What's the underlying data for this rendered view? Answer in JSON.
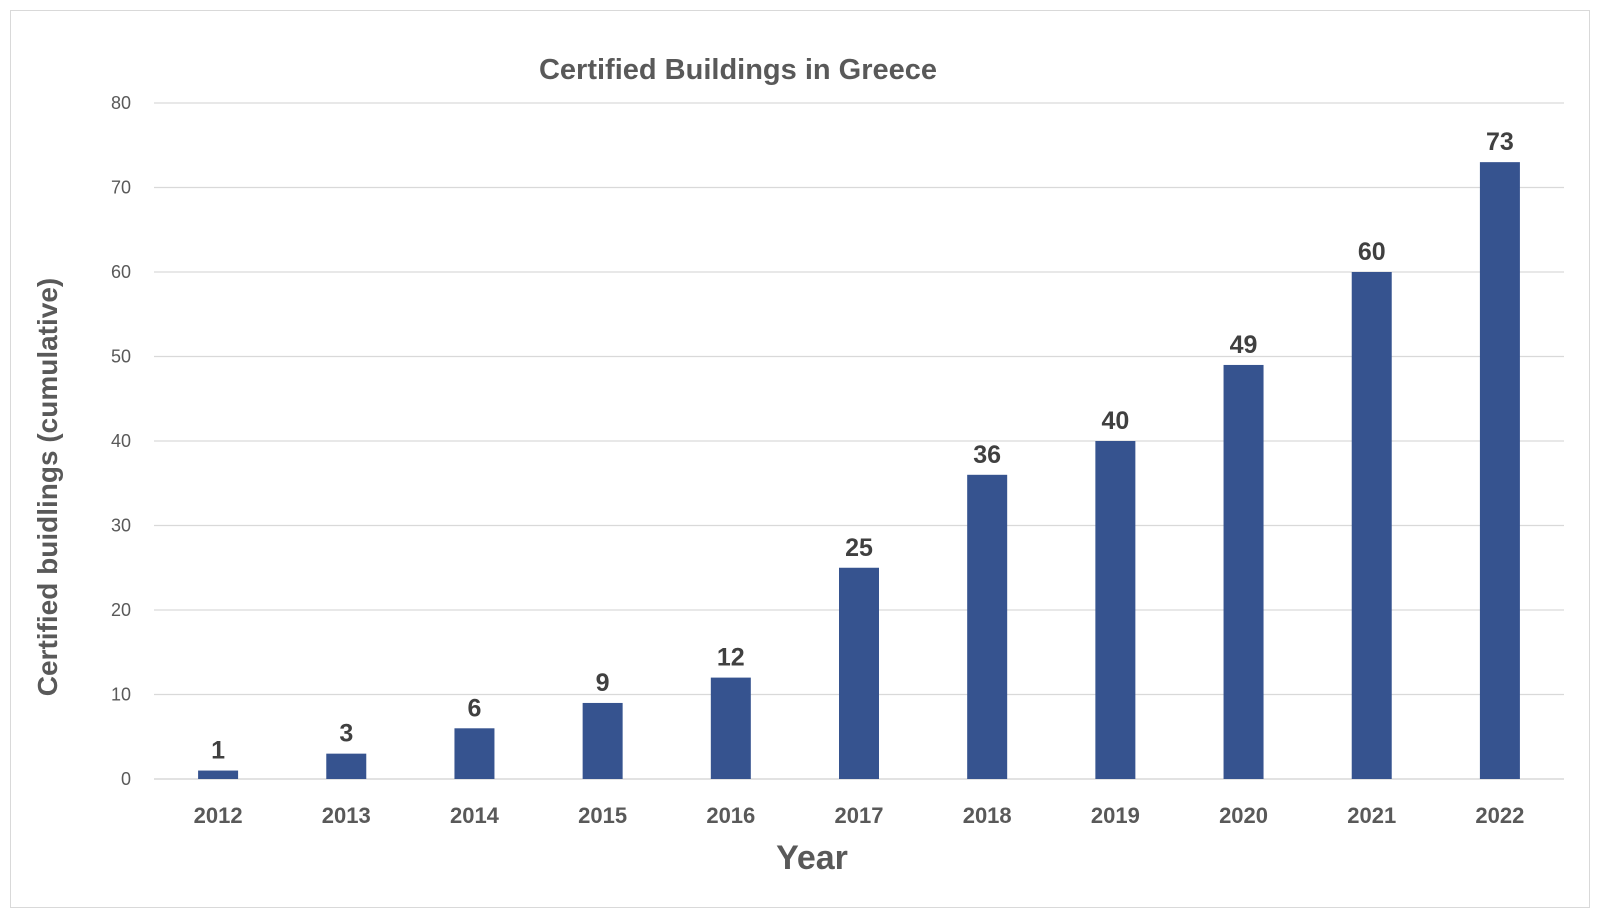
{
  "chart_data": {
    "type": "bar",
    "title": "Certified Buildings in Greece",
    "xlabel": "Year",
    "ylabel": "Certified buidlings  (cumulative)",
    "categories": [
      "2012",
      "2013",
      "2014",
      "2015",
      "2016",
      "2017",
      "2018",
      "2019",
      "2020",
      "2021",
      "2022"
    ],
    "values": [
      1,
      3,
      6,
      9,
      12,
      25,
      36,
      40,
      49,
      60,
      73
    ],
    "ylim": [
      0,
      80
    ],
    "yticks": [
      0,
      10,
      20,
      30,
      40,
      50,
      60,
      70,
      80
    ],
    "grid": true,
    "data_labels": true,
    "bar_color": "#36538f"
  }
}
